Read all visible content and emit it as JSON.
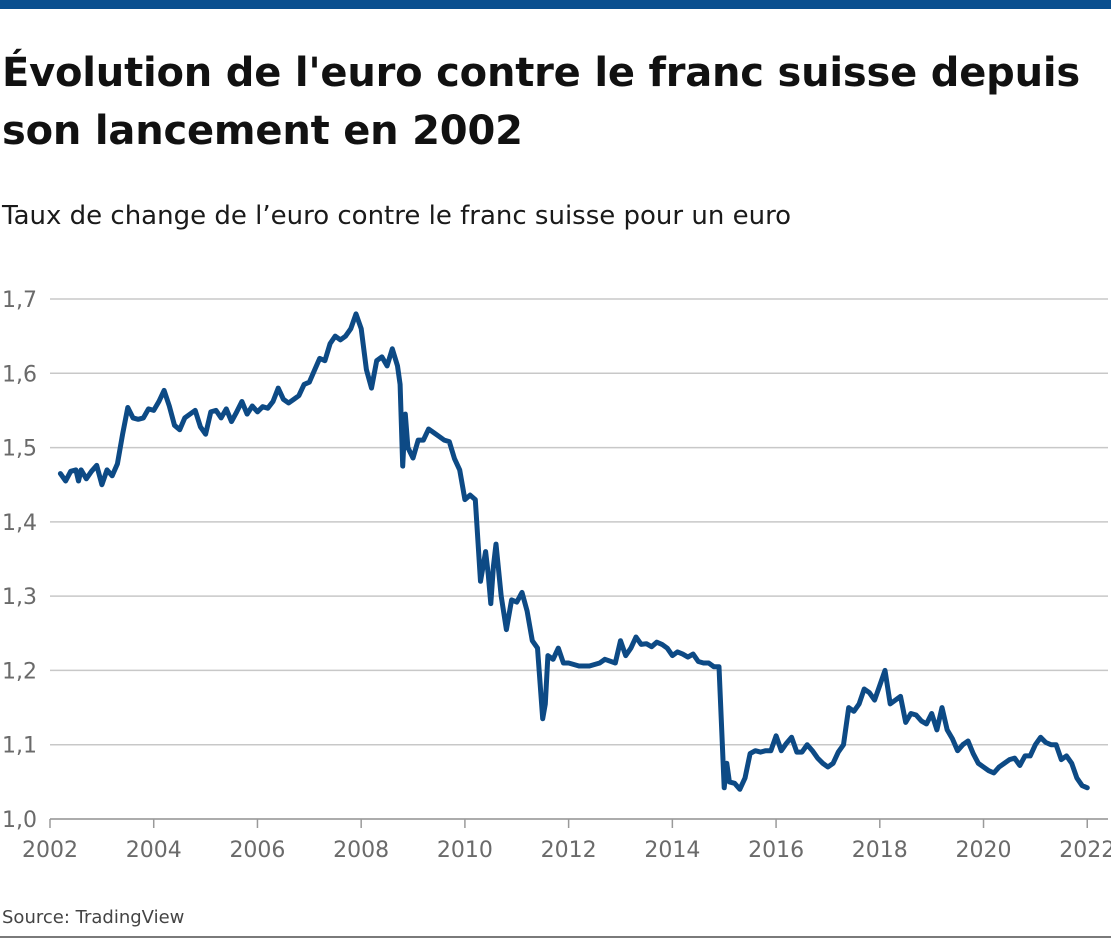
{
  "header": {
    "title": "Évolution de l'euro contre le franc suisse depuis son lancement en 2002",
    "subtitle": "Taux de change de l’euro contre le franc suisse pour un euro"
  },
  "footer": {
    "source": "Source: TradingView"
  },
  "colors": {
    "accent_bar": "#0a4f8f",
    "line": "#0d4a85",
    "grid": "#c8c8c8",
    "tick_text": "#6a6a6a"
  },
  "chart_data": {
    "type": "line",
    "title": "Évolution de l'euro contre le franc suisse depuis son lancement en 2002",
    "subtitle": "Taux de change de l’euro contre le franc suisse pour un euro",
    "xlabel": "",
    "ylabel": "",
    "xlim": [
      2002,
      2022.4
    ],
    "ylim": [
      1.0,
      1.7
    ],
    "grid": "horizontal",
    "legend": "none",
    "x_ticks": [
      "2002",
      "2004",
      "2006",
      "2008",
      "2010",
      "2012",
      "2014",
      "2016",
      "2018",
      "2020",
      "2022"
    ],
    "x_tick_values": [
      2002,
      2004,
      2006,
      2008,
      2010,
      2012,
      2014,
      2016,
      2018,
      2020,
      2022
    ],
    "y_ticks": [
      "1,0",
      "1,1",
      "1,2",
      "1,3",
      "1,4",
      "1,5",
      "1,6",
      "1,7"
    ],
    "y_tick_values": [
      1.0,
      1.1,
      1.2,
      1.3,
      1.4,
      1.5,
      1.6,
      1.7
    ],
    "series": [
      {
        "x": [
          2002.2,
          2002.3,
          2002.4,
          2002.5,
          2002.55,
          2002.6,
          2002.7,
          2002.8,
          2002.9,
          2003.0,
          2003.1,
          2003.2,
          2003.3,
          2003.4,
          2003.5,
          2003.6,
          2003.7,
          2003.8,
          2003.9,
          2004.0,
          2004.1,
          2004.2,
          2004.3,
          2004.4,
          2004.5,
          2004.6,
          2004.7,
          2004.8,
          2004.9,
          2005.0,
          2005.1,
          2005.2,
          2005.3,
          2005.4,
          2005.5,
          2005.6,
          2005.7,
          2005.8,
          2005.9,
          2006.0,
          2006.1,
          2006.2,
          2006.3,
          2006.4,
          2006.5,
          2006.6,
          2006.7,
          2006.8,
          2006.9,
          2007.0,
          2007.1,
          2007.2,
          2007.3,
          2007.4,
          2007.5,
          2007.6,
          2007.7,
          2007.8,
          2007.9,
          2008.0,
          2008.1,
          2008.2,
          2008.3,
          2008.4,
          2008.5,
          2008.6,
          2008.7,
          2008.75,
          2008.8,
          2008.85,
          2008.9,
          2009.0,
          2009.1,
          2009.2,
          2009.3,
          2009.4,
          2009.5,
          2009.6,
          2009.7,
          2009.8,
          2009.9,
          2010.0,
          2010.1,
          2010.2,
          2010.3,
          2010.4,
          2010.45,
          2010.5,
          2010.55,
          2010.6,
          2010.7,
          2010.8,
          2010.9,
          2011.0,
          2011.1,
          2011.2,
          2011.3,
          2011.4,
          2011.5,
          2011.55,
          2011.6,
          2011.7,
          2011.8,
          2011.9,
          2012.0,
          2012.2,
          2012.4,
          2012.6,
          2012.7,
          2012.9,
          2013.0,
          2013.1,
          2013.2,
          2013.3,
          2013.4,
          2013.5,
          2013.6,
          2013.7,
          2013.8,
          2013.9,
          2014.0,
          2014.1,
          2014.2,
          2014.3,
          2014.4,
          2014.5,
          2014.6,
          2014.7,
          2014.8,
          2014.9,
          2015.0,
          2015.05,
          2015.1,
          2015.2,
          2015.3,
          2015.4,
          2015.5,
          2015.6,
          2015.7,
          2015.8,
          2015.9,
          2016.0,
          2016.1,
          2016.2,
          2016.3,
          2016.4,
          2016.5,
          2016.6,
          2016.7,
          2016.8,
          2016.9,
          2017.0,
          2017.1,
          2017.2,
          2017.3,
          2017.4,
          2017.5,
          2017.6,
          2017.7,
          2017.8,
          2017.9,
          2018.0,
          2018.1,
          2018.2,
          2018.3,
          2018.4,
          2018.5,
          2018.6,
          2018.7,
          2018.8,
          2018.9,
          2019.0,
          2019.1,
          2019.2,
          2019.3,
          2019.4,
          2019.5,
          2019.6,
          2019.7,
          2019.8,
          2019.9,
          2020.0,
          2020.1,
          2020.2,
          2020.3,
          2020.4,
          2020.5,
          2020.6,
          2020.7,
          2020.8,
          2020.9,
          2021.0,
          2021.1,
          2021.2,
          2021.3,
          2021.4,
          2021.5,
          2021.6,
          2021.7,
          2021.8,
          2021.9,
          2022.0
        ],
        "y": [
          1.465,
          1.455,
          1.468,
          1.47,
          1.455,
          1.47,
          1.458,
          1.468,
          1.476,
          1.45,
          1.47,
          1.462,
          1.478,
          1.518,
          1.554,
          1.54,
          1.538,
          1.54,
          1.552,
          1.55,
          1.562,
          1.577,
          1.556,
          1.53,
          1.524,
          1.54,
          1.545,
          1.55,
          1.528,
          1.518,
          1.548,
          1.55,
          1.54,
          1.552,
          1.535,
          1.548,
          1.562,
          1.545,
          1.556,
          1.548,
          1.555,
          1.553,
          1.562,
          1.58,
          1.565,
          1.56,
          1.565,
          1.57,
          1.585,
          1.588,
          1.604,
          1.62,
          1.617,
          1.64,
          1.65,
          1.645,
          1.65,
          1.66,
          1.68,
          1.66,
          1.605,
          1.58,
          1.617,
          1.622,
          1.61,
          1.633,
          1.61,
          1.585,
          1.475,
          1.545,
          1.5,
          1.486,
          1.51,
          1.51,
          1.525,
          1.52,
          1.515,
          1.51,
          1.508,
          1.485,
          1.47,
          1.43,
          1.436,
          1.43,
          1.32,
          1.36,
          1.33,
          1.29,
          1.34,
          1.37,
          1.3,
          1.255,
          1.295,
          1.292,
          1.305,
          1.28,
          1.24,
          1.23,
          1.135,
          1.155,
          1.22,
          1.215,
          1.23,
          1.21,
          1.21,
          1.206,
          1.206,
          1.21,
          1.215,
          1.21,
          1.24,
          1.22,
          1.23,
          1.245,
          1.235,
          1.236,
          1.232,
          1.238,
          1.235,
          1.23,
          1.22,
          1.225,
          1.222,
          1.218,
          1.222,
          1.212,
          1.21,
          1.21,
          1.205,
          1.205,
          1.042,
          1.075,
          1.05,
          1.048,
          1.04,
          1.055,
          1.088,
          1.092,
          1.09,
          1.092,
          1.092,
          1.112,
          1.092,
          1.102,
          1.11,
          1.09,
          1.09,
          1.1,
          1.092,
          1.082,
          1.075,
          1.07,
          1.075,
          1.09,
          1.1,
          1.15,
          1.145,
          1.155,
          1.175,
          1.17,
          1.16,
          1.18,
          1.2,
          1.155,
          1.16,
          1.165,
          1.13,
          1.142,
          1.14,
          1.132,
          1.128,
          1.142,
          1.12,
          1.15,
          1.12,
          1.108,
          1.092,
          1.1,
          1.105,
          1.088,
          1.075,
          1.07,
          1.065,
          1.062,
          1.07,
          1.075,
          1.08,
          1.082,
          1.072,
          1.085,
          1.085,
          1.1,
          1.11,
          1.103,
          1.1,
          1.1,
          1.08,
          1.085,
          1.075,
          1.055,
          1.045,
          1.042
        ]
      }
    ]
  }
}
